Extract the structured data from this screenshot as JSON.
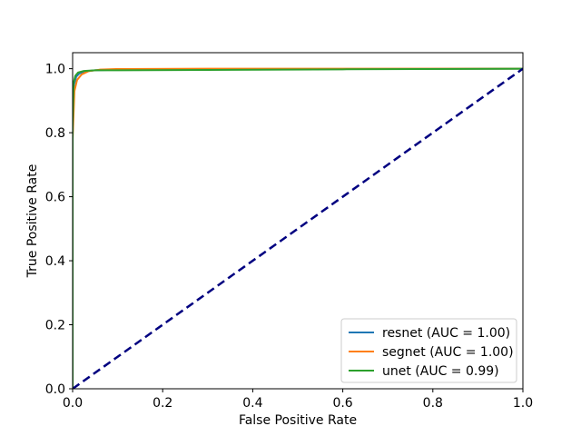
{
  "chart_data": {
    "type": "line",
    "title": "",
    "xlabel": "False Positive Rate",
    "ylabel": "True Positive Rate",
    "xlim": [
      0.0,
      1.0
    ],
    "ylim": [
      0.0,
      1.05
    ],
    "xticks": [
      0.0,
      0.2,
      0.4,
      0.6,
      0.8,
      1.0
    ],
    "yticks": [
      0.0,
      0.2,
      0.4,
      0.6,
      0.8,
      1.0
    ],
    "xtick_labels": [
      "0.0",
      "0.2",
      "0.4",
      "0.6",
      "0.8",
      "1.0"
    ],
    "ytick_labels": [
      "0.0",
      "0.2",
      "0.4",
      "0.6",
      "0.8",
      "1.0"
    ],
    "grid": false,
    "legend_position": "lower-right",
    "series": [
      {
        "name": "resnet (AUC = 1.00)",
        "color": "#1f77b4",
        "x": [
          0,
          0,
          0.003,
          0.008,
          0.015,
          0.03,
          0.05,
          0.1,
          0.3,
          0.6,
          1.0
        ],
        "y": [
          0,
          0.8,
          0.95,
          0.975,
          0.985,
          0.992,
          0.995,
          0.997,
          0.998,
          0.999,
          1.0
        ]
      },
      {
        "name": "segnet (AUC = 1.00)",
        "color": "#ff7f0e",
        "x": [
          0,
          0,
          0.004,
          0.01,
          0.02,
          0.035,
          0.06,
          0.1,
          0.3,
          0.6,
          1.0
        ],
        "y": [
          0,
          0.78,
          0.93,
          0.965,
          0.982,
          0.992,
          0.997,
          0.999,
          1.0,
          1.0,
          1.0
        ]
      },
      {
        "name": "unet (AUC = 0.99)",
        "color": "#2ca02c",
        "x": [
          0,
          0,
          0.002,
          0.006,
          0.012,
          0.025,
          0.05,
          0.1,
          0.3,
          0.6,
          1.0
        ],
        "y": [
          0,
          0.82,
          0.955,
          0.978,
          0.988,
          0.993,
          0.995,
          0.995,
          0.996,
          0.998,
          1.0
        ]
      }
    ],
    "reference_line": {
      "color": "#000080",
      "style": "dashed",
      "x": [
        0,
        1
      ],
      "y": [
        0,
        1
      ]
    }
  }
}
